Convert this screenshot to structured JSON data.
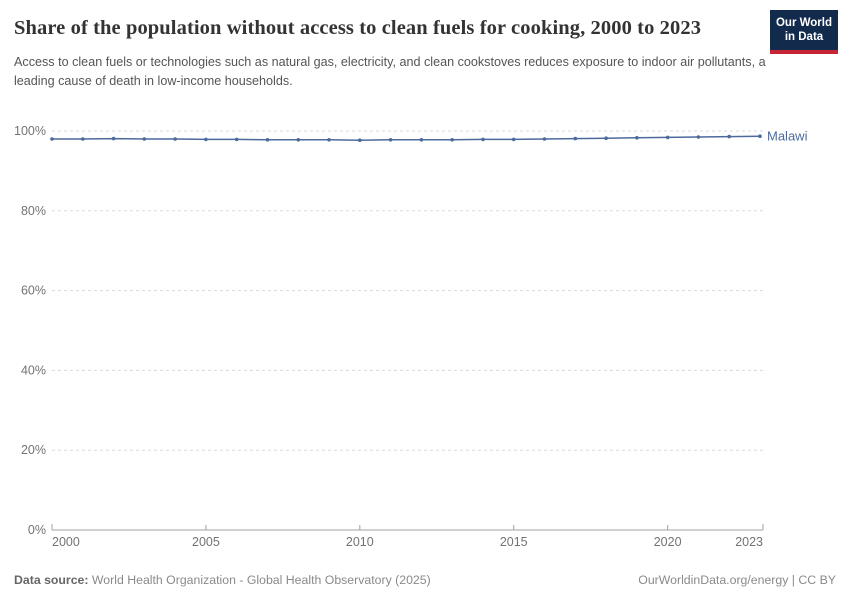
{
  "header": {
    "title": "Share of the population without access to clean fuels for cooking, 2000 to 2023",
    "subtitle": "Access to clean fuels or technologies such as natural gas, electricity, and clean cookstoves reduces exposure to indoor air pollutants, a leading cause of death in low-income households.",
    "logo": {
      "line1": "Our World",
      "line2": "in Data",
      "bg_color": "#122b4d",
      "bar_color": "#c52535"
    }
  },
  "chart_data": {
    "type": "line",
    "title": "Share of the population without access to clean fuels for cooking, 2000 to 2023",
    "x": [
      2000,
      2001,
      2002,
      2003,
      2004,
      2005,
      2006,
      2007,
      2008,
      2009,
      2010,
      2011,
      2012,
      2013,
      2014,
      2015,
      2016,
      2017,
      2018,
      2019,
      2020,
      2021,
      2022,
      2023
    ],
    "series": [
      {
        "name": "Malawi",
        "color": "#4c6a9c",
        "values": [
          98.0,
          98.0,
          98.1,
          98.0,
          98.0,
          97.9,
          97.9,
          97.8,
          97.8,
          97.8,
          97.7,
          97.8,
          97.8,
          97.8,
          97.9,
          97.9,
          98.0,
          98.1,
          98.2,
          98.3,
          98.4,
          98.5,
          98.6,
          98.7
        ]
      }
    ],
    "xlim": [
      2000,
      2023
    ],
    "ylim": [
      0,
      100
    ],
    "x_ticks": [
      2000,
      2005,
      2010,
      2015,
      2020,
      2023
    ],
    "y_ticks": [
      0,
      20,
      40,
      60,
      80,
      100
    ],
    "y_suffix": "%",
    "grid": "horizontal-dashed",
    "grid_color": "#dadada",
    "axis_color": "#a0a0a0",
    "tick_label_color": "#737373",
    "legend_position": "end-of-line-label"
  },
  "footer": {
    "source_label": "Data source:",
    "source_text": " World Health Organization - Global Health Observatory (2025)",
    "attribution": "OurWorldinData.org/energy | CC BY"
  }
}
